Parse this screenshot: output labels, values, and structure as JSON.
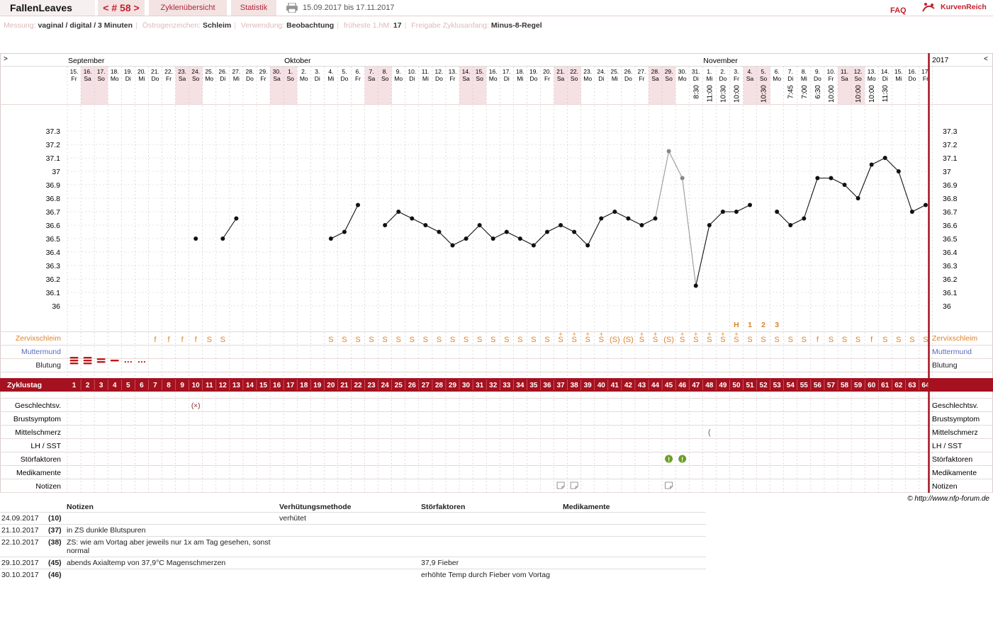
{
  "header": {
    "user": "FallenLeaves",
    "cycle_nav": "< # 58 >",
    "tab_cycles": "Zyklenübersicht",
    "tab_stats": "Statistik",
    "date_range": "15.09.2017 bis 17.11.2017",
    "faq": "FAQ",
    "brand": "KurvenReich"
  },
  "meta": [
    {
      "k": "Messung:",
      "v": "vaginal / digital / 3 Minuten"
    },
    {
      "k": "Östrogenzeichen:",
      "v": "Schleim"
    },
    {
      "k": "Verwendung:",
      "v": "Beobachtung"
    },
    {
      "k": "früheste 1.hM:",
      "v": "17"
    },
    {
      "k": "Freigabe Zyklusanfang:",
      "v": "Minus-8-Regel"
    }
  ],
  "chart": {
    "nav_left": ">",
    "nav_right": "<",
    "year": "2017",
    "months": [
      {
        "label": "September",
        "day_index": 0
      },
      {
        "label": "Oktober",
        "day_index": 16
      },
      {
        "label": "November",
        "day_index": 47
      }
    ],
    "dates": [
      "15.",
      "16.",
      "17.",
      "18.",
      "19.",
      "20.",
      "21.",
      "22.",
      "23.",
      "24.",
      "25.",
      "26.",
      "27.",
      "28.",
      "29.",
      "30.",
      "1.",
      "2.",
      "3.",
      "4.",
      "5.",
      "6.",
      "7.",
      "8.",
      "9.",
      "10.",
      "11.",
      "12.",
      "13.",
      "14.",
      "15.",
      "16.",
      "17.",
      "18.",
      "19.",
      "20.",
      "21.",
      "22.",
      "23.",
      "24.",
      "25.",
      "26.",
      "27.",
      "28.",
      "29.",
      "30.",
      "31.",
      "1.",
      "2.",
      "3.",
      "4.",
      "5.",
      "6.",
      "7.",
      "8.",
      "9.",
      "10.",
      "11.",
      "12.",
      "13.",
      "14.",
      "15.",
      "16.",
      "17."
    ],
    "weekdays": [
      "Fr",
      "Sa",
      "So",
      "Mo",
      "Di",
      "Mi",
      "Do",
      "Fr",
      "Sa",
      "So",
      "Mo",
      "Di",
      "Mi",
      "Do",
      "Fr",
      "Sa",
      "So",
      "Mo",
      "Di",
      "Mi",
      "Do",
      "Fr",
      "Sa",
      "So",
      "Mo",
      "Di",
      "Mi",
      "Do",
      "Fr",
      "Sa",
      "So",
      "Mo",
      "Di",
      "Mi",
      "Do",
      "Fr",
      "Sa",
      "So",
      "Mo",
      "Di",
      "Mi",
      "Do",
      "Fr",
      "Sa",
      "So",
      "Mo",
      "Di",
      "Mi",
      "Do",
      "Fr",
      "Sa",
      "So",
      "Mo",
      "Di",
      "Mi",
      "Do",
      "Fr",
      "Sa",
      "So",
      "Mo",
      "Di",
      "Mi",
      "Do",
      "Fr"
    ],
    "times": {
      "46": "8:30",
      "47": "11:00",
      "48": "10:30",
      "49": "10:00",
      "51": "10:30",
      "53": "7:45",
      "54": "7:00",
      "55": "6:30",
      "56": "10:00",
      "58": "10:00",
      "59": "10:00",
      "60": "11:30"
    },
    "temp_axis": [
      "37.3",
      "37.2",
      "37.1",
      "37",
      "36.9",
      "36.8",
      "36.7",
      "36.6",
      "36.5",
      "36.4",
      "36.3",
      "36.2",
      "36.1",
      "36"
    ],
    "temps": [
      null,
      null,
      null,
      null,
      null,
      null,
      null,
      null,
      null,
      36.5,
      null,
      36.5,
      36.65,
      null,
      null,
      null,
      null,
      null,
      null,
      36.5,
      36.55,
      36.75,
      null,
      36.6,
      36.7,
      36.65,
      36.6,
      36.55,
      36.45,
      36.5,
      36.6,
      36.5,
      36.55,
      36.5,
      36.45,
      36.55,
      36.6,
      36.55,
      36.45,
      36.65,
      36.7,
      36.65,
      36.6,
      36.65,
      37.15,
      36.95,
      36.15,
      36.6,
      36.7,
      36.7,
      36.75,
      null,
      36.7,
      36.6,
      36.65,
      36.95,
      36.95,
      36.9,
      36.8,
      37.05,
      37.1,
      37.0,
      36.7,
      36.75
    ],
    "excluded_temp_days": [
      44,
      45
    ],
    "h_marks": [
      {
        "day": 49,
        "t": "H"
      },
      {
        "day": 50,
        "t": "1"
      },
      {
        "day": 51,
        "t": "2"
      },
      {
        "day": 52,
        "t": "3"
      }
    ],
    "mucus": [
      "",
      "",
      "",
      "",
      "",
      "",
      "f",
      "f",
      "f",
      "f",
      "S",
      "S",
      "",
      "",
      "",
      "",
      "",
      "",
      "",
      "S",
      "S",
      "S",
      "S",
      "S",
      "S",
      "S",
      "S",
      "S",
      "S",
      "S",
      "S",
      "S",
      "S",
      "S",
      "S",
      "S",
      "S+",
      "S+",
      "S+",
      "S+",
      "(S)",
      "(S)",
      "S+",
      "S+",
      "(S)",
      "S+",
      "S+",
      "S+",
      "S+",
      "S+",
      "S",
      "S",
      "S",
      "S",
      "S",
      "f",
      "S",
      "S",
      "S",
      "f",
      "S",
      "S",
      "S",
      "S"
    ],
    "bleeding": [
      3,
      3,
      2,
      1,
      "d",
      "d",
      "",
      "",
      "",
      "",
      "",
      "",
      "",
      "",
      "",
      "",
      "",
      "",
      "",
      "",
      "",
      "",
      "",
      "",
      "",
      "",
      "",
      "",
      "",
      "",
      "",
      "",
      "",
      "",
      "",
      "",
      "",
      "",
      "",
      "",
      "",
      "",
      "",
      "",
      "",
      "",
      "",
      "",
      "",
      "",
      "",
      "",
      "",
      "",
      "",
      "",
      "",
      "",
      "",
      "",
      "",
      "",
      ""
    ],
    "cycle_days": [
      "1",
      "2",
      "3",
      "4",
      "5",
      "6",
      "7",
      "8",
      "9",
      "10",
      "11",
      "12",
      "13",
      "14",
      "15",
      "16",
      "17",
      "18",
      "19",
      "20",
      "21",
      "22",
      "23",
      "24",
      "25",
      "26",
      "27",
      "28",
      "29",
      "30",
      "31",
      "32",
      "33",
      "34",
      "35",
      "36",
      "37",
      "38",
      "39",
      "40",
      "41",
      "42",
      "43",
      "44",
      "45",
      "46",
      "47",
      "48",
      "49",
      "50",
      "51",
      "52",
      "53",
      "54",
      "55",
      "56",
      "57",
      "58",
      "59",
      "60",
      "61",
      "62",
      "63",
      "64"
    ],
    "row_labels": {
      "mucus": "Zervixschleim",
      "cervix": "Muttermund",
      "bleeding": "Blutung",
      "cycle": "Zyklustag",
      "sex": "Geschlechtsv.",
      "breast": "Brustsymptom",
      "pain": "Mittelschmerz",
      "lh": "LH / SST",
      "disturb": "Störfaktoren",
      "meds": "Medikamente",
      "notes": "Notizen"
    },
    "sex_mark": {
      "day": 9,
      "t": "(×)"
    },
    "pain_mark": {
      "day": 47,
      "t": "("
    },
    "disturb_days": [
      44,
      45
    ],
    "note_days": [
      36,
      37,
      44
    ],
    "copyright": "© http://www.nfp-forum.de",
    "colors": {
      "accent": "#a5111f",
      "weekend": "#f5e0e3",
      "grid": "#cfc3c3",
      "mucus": "#e0822a",
      "cervix": "#5a6bbf",
      "bleed": "#c01818",
      "disturb": "#6d9e2a"
    }
  },
  "notes_table": {
    "headers": [
      "Notizen",
      "Verhütungsmethode",
      "Störfaktoren",
      "Medikamente"
    ],
    "rows": [
      {
        "date": "24.09.2017",
        "cd": "(10)",
        "note": "",
        "method": "verhütet",
        "disturb": "",
        "meds": ""
      },
      {
        "date": "21.10.2017",
        "cd": "(37)",
        "note": "in ZS dunkle Blutspuren",
        "method": "",
        "disturb": "",
        "meds": ""
      },
      {
        "date": "22.10.2017",
        "cd": "(38)",
        "note": "ZS: wie am Vortag aber jeweils nur 1x am Tag gesehen, sonst normal",
        "method": "",
        "disturb": "",
        "meds": ""
      },
      {
        "date": "29.10.2017",
        "cd": "(45)",
        "note": "abends Axialtemp von 37,9°C Magenschmerzen",
        "method": "",
        "disturb": "37,9 Fieber",
        "meds": ""
      },
      {
        "date": "30.10.2017",
        "cd": "(46)",
        "note": "",
        "method": "",
        "disturb": "erhöhte Temp durch Fieber vom Vortag",
        "meds": ""
      }
    ]
  }
}
